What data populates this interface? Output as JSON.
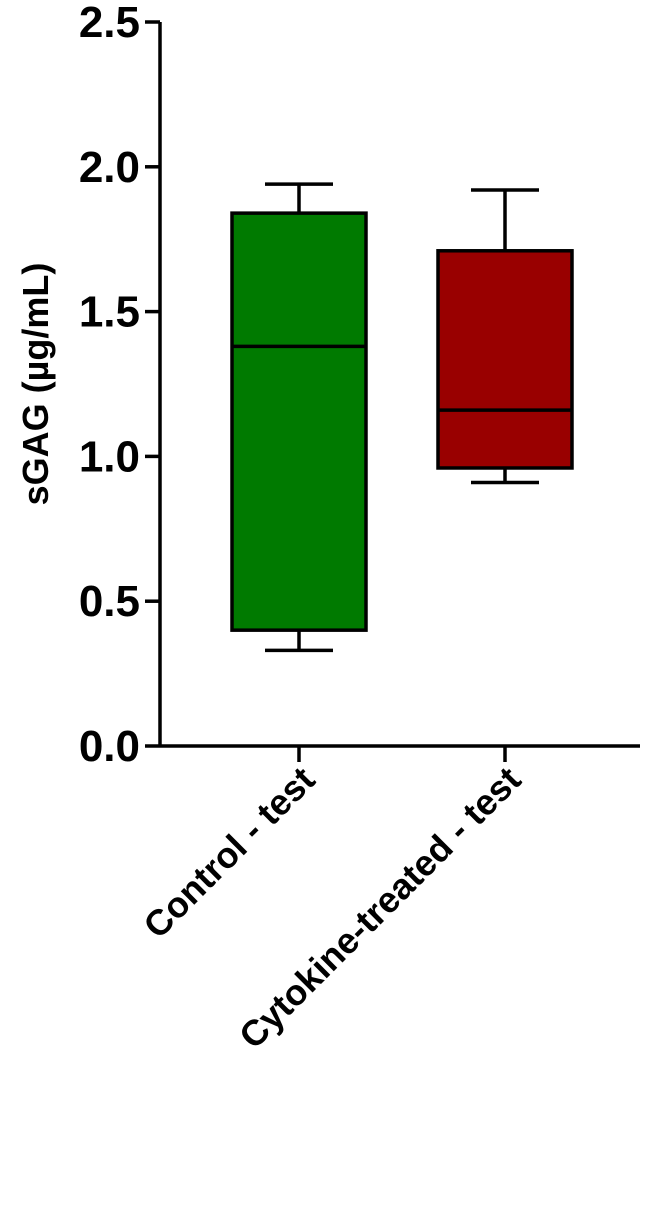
{
  "chart_data": {
    "type": "box",
    "ylabel": "sGAG (µg/mL)",
    "categories": [
      "Control - test",
      "Cytokine-treated - test"
    ],
    "values": [
      {
        "min": 0.33,
        "q1": 0.4,
        "median": 1.38,
        "q3": 1.84,
        "max": 1.94
      },
      {
        "min": 0.91,
        "q1": 0.96,
        "median": 1.16,
        "q3": 1.71,
        "max": 1.92
      }
    ],
    "colors": [
      "#007a00",
      "#990000"
    ],
    "ylim": [
      0,
      2.5
    ],
    "yticks": [
      {
        "value": 0,
        "label": "0.0"
      },
      0.5,
      {
        "value": 1,
        "label": "1.0"
      },
      1.5,
      {
        "value": 2,
        "label": "2.0"
      },
      2.5
    ]
  }
}
